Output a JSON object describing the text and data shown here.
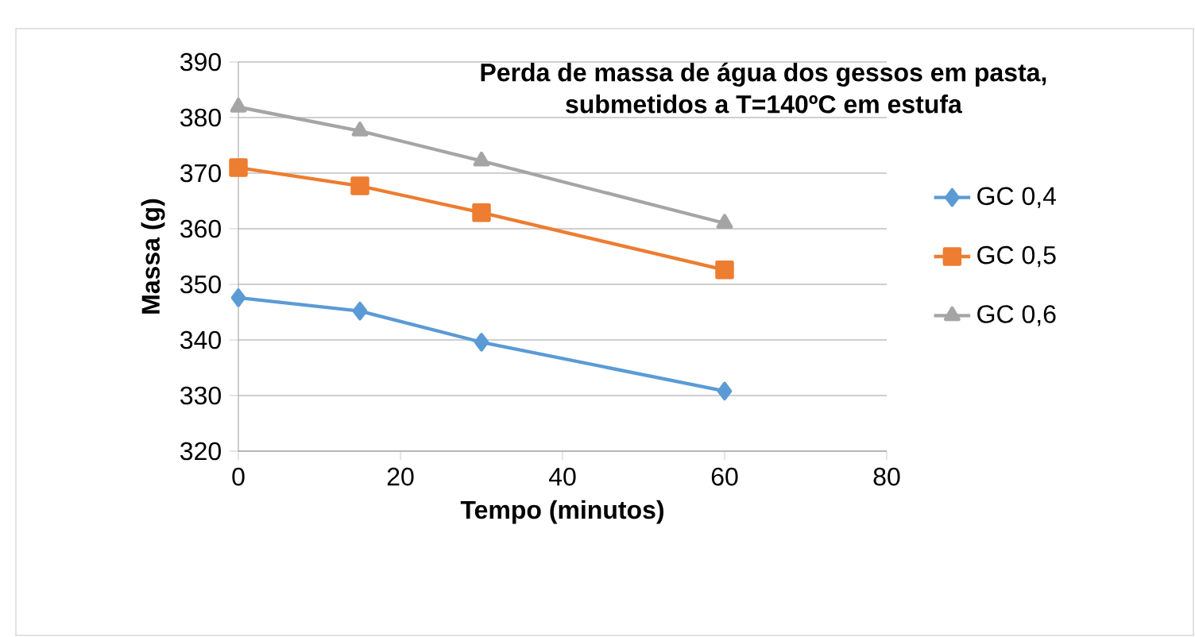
{
  "chart_data": {
    "type": "line",
    "title": "Perda de massa de água dos gessos em pasta,\nsubmetidos a T=140ºC em estufa",
    "xlabel": "Tempo (minutos)",
    "ylabel": "Massa (g)",
    "x": [
      0,
      15,
      30,
      60
    ],
    "series": [
      {
        "name": "GC 0,4",
        "color": "#5b9bd5",
        "marker": "diamond",
        "values": [
          347.6,
          345.2,
          339.6,
          330.8
        ]
      },
      {
        "name": "GC 0,5",
        "color": "#ed7d31",
        "marker": "square",
        "values": [
          371.0,
          367.7,
          362.9,
          352.6
        ]
      },
      {
        "name": "GC 0,6",
        "color": "#a5a5a5",
        "marker": "triangle",
        "values": [
          381.9,
          377.6,
          372.2,
          361.0
        ]
      }
    ],
    "xlim": [
      0,
      80
    ],
    "ylim": [
      320,
      390
    ],
    "xticks": [
      0,
      20,
      40,
      60,
      80
    ],
    "yticks": [
      320,
      330,
      340,
      350,
      360,
      370,
      380,
      390
    ],
    "grid": "y",
    "legend": "right"
  }
}
